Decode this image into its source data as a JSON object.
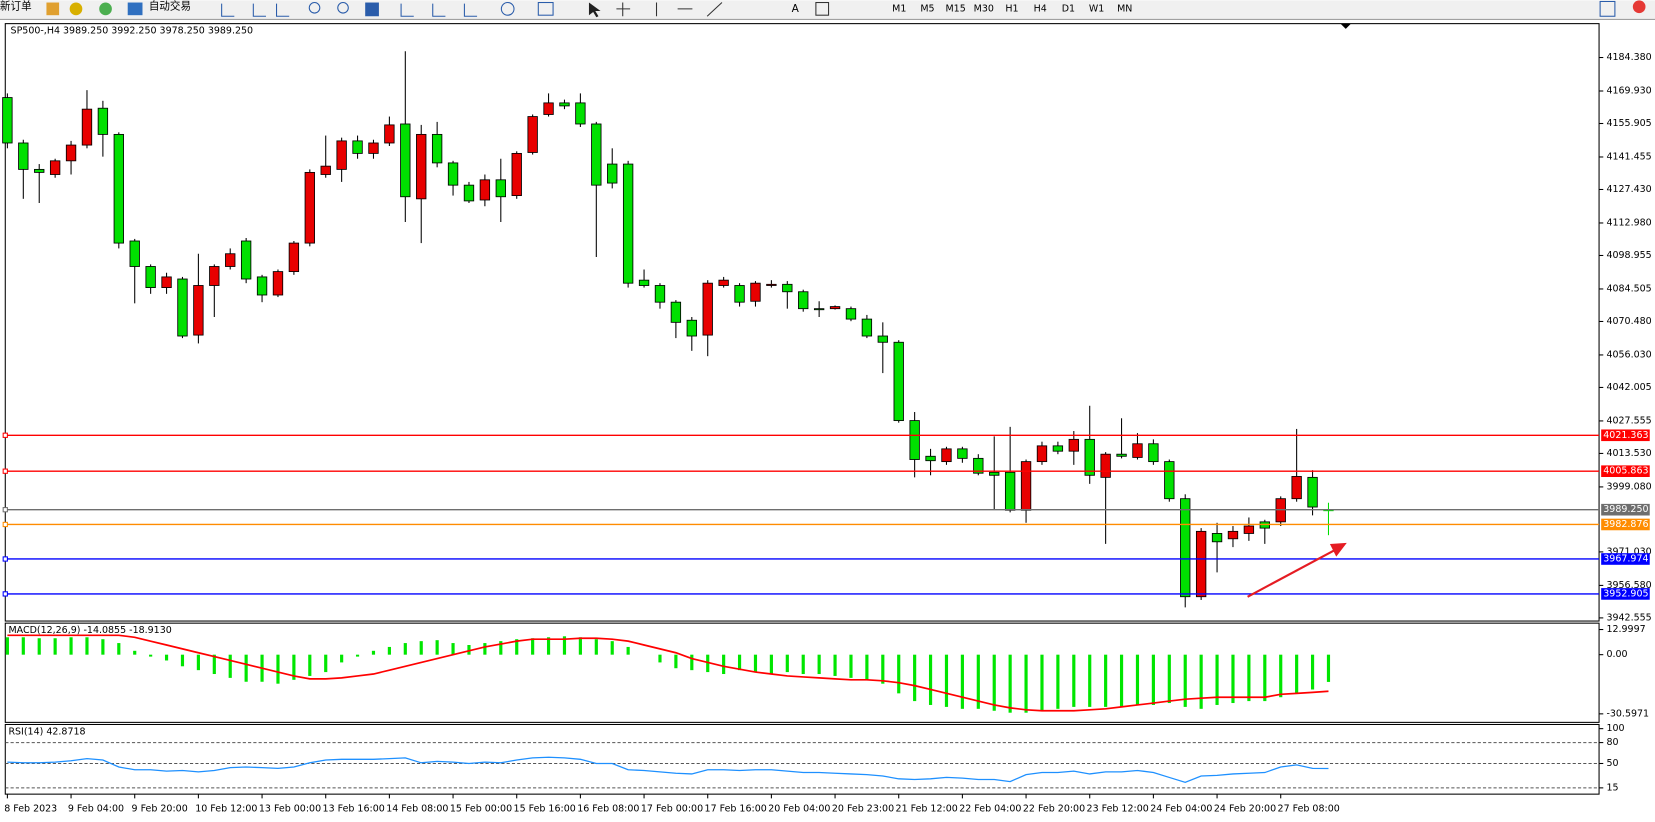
{
  "toolbar": {
    "new_order": "新订单",
    "auto_trade": "自动交易",
    "text_tool": "A",
    "timeframes": [
      "M1",
      "M5",
      "M15",
      "M30",
      "H1",
      "H4",
      "D1",
      "W1",
      "MN"
    ]
  },
  "chart_data": [
    {
      "type": "candlestick",
      "title": "SP500-,H4  3989.250 3992.250 3978.250 3989.250",
      "up_color": "#e80000",
      "down_color": "#00e000",
      "categories": [
        "8 Feb 2023",
        null,
        null,
        null,
        "9 Feb 04:00",
        null,
        null,
        null,
        "9 Feb 20:00",
        null,
        null,
        null,
        "10 Feb 12:00",
        null,
        null,
        null,
        "13 Feb 00:00",
        null,
        null,
        null,
        "13 Feb 16:00",
        null,
        null,
        null,
        "14 Feb 08:00",
        null,
        null,
        null,
        "15 Feb 00:00",
        null,
        null,
        null,
        "15 Feb 16:00",
        null,
        null,
        null,
        "16 Feb 08:00",
        null,
        null,
        null,
        "17 Feb 00:00",
        null,
        null,
        null,
        "17 Feb 16:00",
        null,
        null,
        null,
        "20 Feb 04:00",
        null,
        null,
        null,
        "20 Feb 23:00",
        null,
        null,
        null,
        "21 Feb 12:00",
        null,
        null,
        null,
        "22 Feb 04:00",
        null,
        null,
        null,
        "22 Feb 20:00",
        null,
        null,
        null,
        "23 Feb 12:00",
        null,
        null,
        null,
        "24 Feb 04:00",
        null,
        null,
        null,
        "24 Feb 20:00",
        null,
        null,
        null,
        "27 Feb 08:00",
        null,
        null,
        null
      ],
      "open": [
        4167.1,
        4147.5,
        4136.1,
        4133.9,
        4139.8,
        4146.6,
        4162.5,
        4151.2,
        4105.2,
        4094.2,
        4085.1,
        4088.8,
        4064.6,
        4086.0,
        4094.2,
        4105.2,
        4089.7,
        4081.9,
        4092.0,
        4104.3,
        4133.9,
        4136.1,
        4148.4,
        4143.0,
        4147.5,
        4155.7,
        4123.4,
        4151.2,
        4138.9,
        4129.3,
        4122.9,
        4131.6,
        4124.8,
        4143.4,
        4159.8,
        4164.8,
        4164.8,
        4155.7,
        4138.4,
        4138.4,
        4088.3,
        4086.0,
        4078.8,
        4071.0,
        4064.6,
        4086.0,
        4086.0,
        4079.2,
        4086.0,
        4086.5,
        4083.3,
        4076.0,
        4076.0,
        4076.0,
        4071.5,
        4064.2,
        4061.5,
        4027.7,
        4012.3,
        4010.0,
        4015.5,
        4011.4,
        4005.4,
        4005.4,
        3989.0,
        4010.0,
        4016.8,
        4014.5,
        4019.6,
        4003.2,
        4013.2,
        4011.8,
        4017.7,
        4010.0,
        3994.0,
        3951.7,
        3979.0,
        3976.7,
        3979.0,
        3984.0,
        3984.0,
        3994.0,
        4003.2,
        3989.25
      ],
      "high": [
        4168.9,
        4148.9,
        4138.4,
        4140.7,
        4148.4,
        4170.3,
        4165.7,
        4152.1,
        4106.1,
        4095.1,
        4091.5,
        4089.7,
        4099.7,
        4095.1,
        4102.0,
        4106.5,
        4090.6,
        4092.9,
        4105.2,
        4136.1,
        4150.7,
        4149.8,
        4150.7,
        4148.9,
        4158.9,
        4187.1,
        4155.3,
        4156.6,
        4139.8,
        4130.7,
        4133.9,
        4140.7,
        4143.9,
        4159.8,
        4168.9,
        4166.2,
        4168.9,
        4156.6,
        4145.2,
        4139.8,
        4092.9,
        4087.0,
        4079.7,
        4072.4,
        4088.3,
        4089.7,
        4087.0,
        4087.9,
        4088.3,
        4087.9,
        4084.2,
        4079.2,
        4077.4,
        4076.9,
        4073.3,
        4070.1,
        4062.4,
        4031.4,
        4015.5,
        4016.4,
        4016.4,
        4013.2,
        4020.9,
        4025.0,
        4010.9,
        4018.6,
        4018.6,
        4023.2,
        4034.1,
        4014.1,
        4028.7,
        4022.3,
        4019.6,
        4010.9,
        3995.9,
        3981.3,
        3983.6,
        3982.2,
        3985.9,
        3984.9,
        3995.0,
        4024.1,
        4006.3,
        3992.25
      ],
      "low": [
        4145.2,
        4123.4,
        4121.6,
        4132.5,
        4133.9,
        4145.2,
        4141.6,
        4102.0,
        4078.3,
        4082.4,
        4082.4,
        4063.3,
        4061.0,
        4072.4,
        4092.9,
        4087.0,
        4078.8,
        4081.0,
        4090.6,
        4102.9,
        4132.5,
        4130.7,
        4140.7,
        4140.7,
        4146.2,
        4113.4,
        4104.3,
        4137.0,
        4124.8,
        4121.6,
        4120.2,
        4113.4,
        4123.4,
        4142.5,
        4158.9,
        4162.1,
        4154.4,
        4098.3,
        4127.9,
        4085.1,
        4085.1,
        4076.0,
        4063.3,
        4057.8,
        4055.5,
        4085.1,
        4076.9,
        4076.9,
        4085.1,
        4076.0,
        4074.7,
        4072.4,
        4075.6,
        4070.6,
        4063.3,
        4048.2,
        4026.8,
        4003.2,
        4004.1,
        4008.6,
        4009.5,
        4004.1,
        3989.5,
        3988.1,
        3983.6,
        4008.6,
        4013.2,
        4008.6,
        4000.4,
        3974.5,
        4011.4,
        4010.9,
        4008.6,
        3992.7,
        3947.1,
        3950.3,
        3962.2,
        3973.1,
        3975.8,
        3974.5,
        3982.2,
        3992.7,
        3986.8,
        3978.25
      ],
      "close": [
        4147.5,
        4136.1,
        4134.8,
        4139.8,
        4146.6,
        4162.1,
        4151.2,
        4104.3,
        4094.2,
        4085.1,
        4089.7,
        4064.2,
        4086.0,
        4094.2,
        4099.7,
        4088.8,
        4081.9,
        4092.0,
        4104.3,
        4134.8,
        4137.5,
        4148.4,
        4143.0,
        4147.5,
        4155.3,
        4124.3,
        4151.2,
        4138.9,
        4129.3,
        4122.5,
        4131.6,
        4124.3,
        4143.0,
        4158.9,
        4164.8,
        4163.5,
        4155.7,
        4129.3,
        4130.2,
        4087.0,
        4086.0,
        4078.8,
        4070.1,
        4064.2,
        4087.0,
        4088.3,
        4078.8,
        4087.0,
        4086.5,
        4083.3,
        4076.0,
        4075.6,
        4076.9,
        4071.5,
        4064.2,
        4061.5,
        4027.7,
        4010.9,
        4010.4,
        4015.5,
        4011.4,
        4005.0,
        4004.1,
        3989.0,
        4010.0,
        4016.8,
        4014.5,
        4019.6,
        4004.1,
        4013.2,
        4012.3,
        4017.7,
        4010.0,
        3994.0,
        3951.7,
        3979.9,
        3975.4,
        3979.9,
        3982.2,
        3981.3,
        3994.0,
        4003.6,
        3990.4,
        3989.25
      ],
      "ylim": [
        3941.2,
        4199.0
      ],
      "yticks": [
        {
          "value": 4184.38,
          "label": "4184.380"
        },
        {
          "value": 4169.93,
          "label": "4169.930"
        },
        4155.905,
        4141.455,
        {
          "value": 4127.43,
          "label": "4127.430"
        },
        {
          "value": 4112.98,
          "label": "4112.980"
        },
        4098.955,
        4084.505,
        {
          "value": 4070.48,
          "label": "4070.480"
        },
        {
          "value": 4056.03,
          "label": "4056.030"
        },
        4042.005,
        4027.555,
        {
          "value": 4013.53,
          "label": "4013.530"
        },
        {
          "value": 3999.08,
          "label": "3999.080"
        },
        {
          "value": 3971.03,
          "label": "3971.030"
        },
        {
          "value": 3956.58,
          "label": "3956.580"
        },
        3942.555
      ],
      "hlines": [
        {
          "value": 4021.363,
          "color": "#ff0000"
        },
        {
          "value": 4005.863,
          "color": "#ff0000"
        },
        {
          "value": 3989.25,
          "label": "3989.250",
          "color": "#6e6e6e"
        },
        {
          "value": 3982.876,
          "color": "#ff8c00"
        },
        {
          "value": 3967.974,
          "color": "#0000ff"
        },
        {
          "value": 3952.905,
          "color": "#0000ff"
        }
      ]
    },
    {
      "type": "macd",
      "title": "MACD(12,26,9) -14.0855 -18.9130",
      "ylim": [
        -35.0,
        16.3
      ],
      "yticks": [
        12.9997,
        {
          "value": 0,
          "label": "0.00"
        },
        -30.5971
      ],
      "histogram": {
        "color": "#00e600",
        "values": [
          9,
          9,
          8.5,
          8.5,
          9,
          9,
          8,
          6,
          2,
          -1,
          -3,
          -6,
          -8,
          -10,
          -12,
          -14,
          -14,
          -15,
          -13,
          -11,
          -9,
          -4,
          -1,
          2,
          4,
          6,
          7,
          7.5,
          6,
          5,
          6,
          7,
          8,
          8.5,
          9,
          9.5,
          9,
          8,
          7,
          4,
          0,
          -4,
          -7,
          -8,
          -9,
          -10,
          -8,
          -9,
          -10,
          -9,
          -10,
          -10,
          -11,
          -12,
          -13,
          -15,
          -20,
          -24,
          -26,
          -27,
          -28,
          -28,
          -29,
          -30,
          -30,
          -29,
          -28,
          -27,
          -27,
          -27,
          -27,
          -26,
          -26,
          -25,
          -27,
          -28,
          -26,
          -25,
          -24,
          -24,
          -22,
          -20,
          -18,
          -14.0855
        ]
      },
      "signal": {
        "color": "#ff0000",
        "values": [
          10,
          10,
          10,
          10,
          10,
          10,
          10,
          10,
          9,
          7,
          5,
          3,
          1,
          -1,
          -3,
          -5,
          -7,
          -9,
          -11,
          -12.5,
          -12.5,
          -12,
          -11,
          -10,
          -8,
          -6,
          -4,
          -2,
          0,
          2,
          4,
          5.5,
          7,
          8,
          8,
          8,
          8.5,
          8.5,
          8,
          7,
          5,
          3,
          1,
          -2,
          -4,
          -6,
          -7.5,
          -9,
          -10,
          -11,
          -11.5,
          -12,
          -12.5,
          -13,
          -13,
          -13.5,
          -14.5,
          -16,
          -18,
          -20,
          -22,
          -24,
          -26,
          -27.5,
          -28.5,
          -29,
          -29,
          -29,
          -28.5,
          -28,
          -27,
          -26,
          -25,
          -24,
          -23,
          -22.5,
          -22,
          -22,
          -22,
          -22,
          -20.5,
          -20,
          -19.5,
          -18.913
        ]
      }
    },
    {
      "type": "line",
      "title": "RSI(14) 42.8718",
      "color": "#1e90ff",
      "ylim": [
        6,
        106
      ],
      "yticks": [
        100,
        80,
        50,
        15
      ],
      "levels": [
        80,
        50,
        15
      ],
      "values": [
        52,
        51,
        51,
        52,
        54,
        57,
        55,
        45,
        41,
        41,
        39,
        40,
        38,
        40,
        44,
        45,
        44,
        43,
        45,
        51,
        55,
        56,
        56,
        56,
        57,
        58,
        51,
        53,
        52,
        50,
        52,
        51,
        55,
        58,
        59,
        58,
        56,
        50,
        50,
        41,
        40,
        38,
        36,
        35,
        41,
        41,
        40,
        41,
        41,
        39,
        37,
        37,
        36,
        35,
        34,
        32,
        28,
        27,
        28,
        30,
        29,
        27,
        27,
        24,
        34,
        37,
        37,
        39,
        35,
        38,
        38,
        40,
        37,
        30,
        23,
        32,
        33,
        35,
        36,
        37,
        45,
        48,
        43,
        42.8718
      ]
    }
  ]
}
